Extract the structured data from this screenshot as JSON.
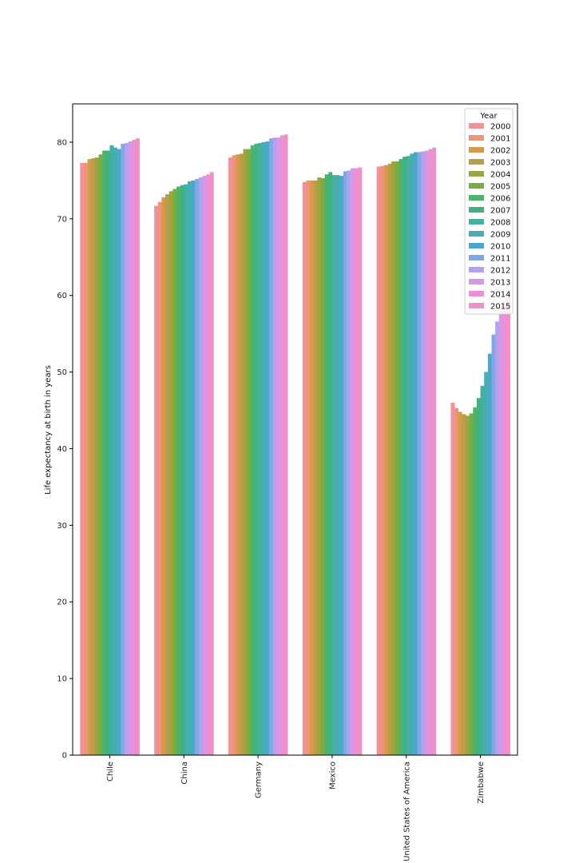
{
  "chart_data": {
    "type": "bar",
    "ylabel": "Life expectancy at birth in years",
    "xlabel": "",
    "ylim": [
      0,
      85
    ],
    "yticks": [
      0,
      10,
      20,
      30,
      40,
      50,
      60,
      70,
      80
    ],
    "grid": false,
    "legend": {
      "title": "Year",
      "placement": "top-right"
    },
    "categories": [
      "Chile",
      "China",
      "Germany",
      "Mexico",
      "United States of America",
      "Zimbabwe"
    ],
    "series": [
      {
        "name": "2000",
        "color": "#f0929c",
        "values": [
          77.3,
          71.7,
          78.0,
          74.8,
          76.8,
          46.0
        ]
      },
      {
        "name": "2001",
        "color": "#ec9677",
        "values": [
          77.3,
          72.2,
          78.3,
          75.0,
          76.9,
          45.3
        ]
      },
      {
        "name": "2002",
        "color": "#d89a4a",
        "values": [
          77.8,
          72.8,
          78.4,
          75.0,
          77.0,
          44.8
        ]
      },
      {
        "name": "2003",
        "color": "#b89e48",
        "values": [
          77.9,
          73.2,
          78.5,
          75.0,
          77.2,
          44.5
        ]
      },
      {
        "name": "2004",
        "color": "#9ea43f",
        "values": [
          78.0,
          73.6,
          79.1,
          75.4,
          77.5,
          44.3
        ]
      },
      {
        "name": "2005",
        "color": "#78ad41",
        "values": [
          78.4,
          73.9,
          79.1,
          75.3,
          77.5,
          44.6
        ]
      },
      {
        "name": "2006",
        "color": "#4db36a",
        "values": [
          78.9,
          74.2,
          79.6,
          75.8,
          77.8,
          45.4
        ]
      },
      {
        "name": "2007",
        "color": "#43b084",
        "values": [
          78.9,
          74.4,
          79.8,
          76.1,
          78.1,
          46.6
        ]
      },
      {
        "name": "2008",
        "color": "#44b09e",
        "values": [
          79.6,
          74.5,
          79.9,
          75.7,
          78.2,
          48.2
        ]
      },
      {
        "name": "2009",
        "color": "#46aeb3",
        "values": [
          79.3,
          74.9,
          80.0,
          75.7,
          78.5,
          50.0
        ]
      },
      {
        "name": "2010",
        "color": "#4ca7cd",
        "values": [
          79.1,
          75.0,
          80.1,
          75.6,
          78.7,
          52.4
        ]
      },
      {
        "name": "2011",
        "color": "#80a8e6",
        "values": [
          79.8,
          75.2,
          80.5,
          76.2,
          78.7,
          54.9
        ]
      },
      {
        "name": "2012",
        "color": "#b3a3ed",
        "values": [
          79.9,
          75.4,
          80.6,
          76.3,
          78.8,
          56.6
        ]
      },
      {
        "name": "2013",
        "color": "#d996e8",
        "values": [
          80.1,
          75.6,
          80.6,
          76.6,
          78.9,
          58.0
        ]
      },
      {
        "name": "2014",
        "color": "#ec8fd4",
        "values": [
          80.3,
          75.8,
          80.9,
          76.6,
          79.1,
          59.2
        ]
      },
      {
        "name": "2015",
        "color": "#ee92c5",
        "values": [
          80.5,
          76.1,
          81.0,
          76.7,
          79.3,
          60.7
        ]
      }
    ]
  }
}
